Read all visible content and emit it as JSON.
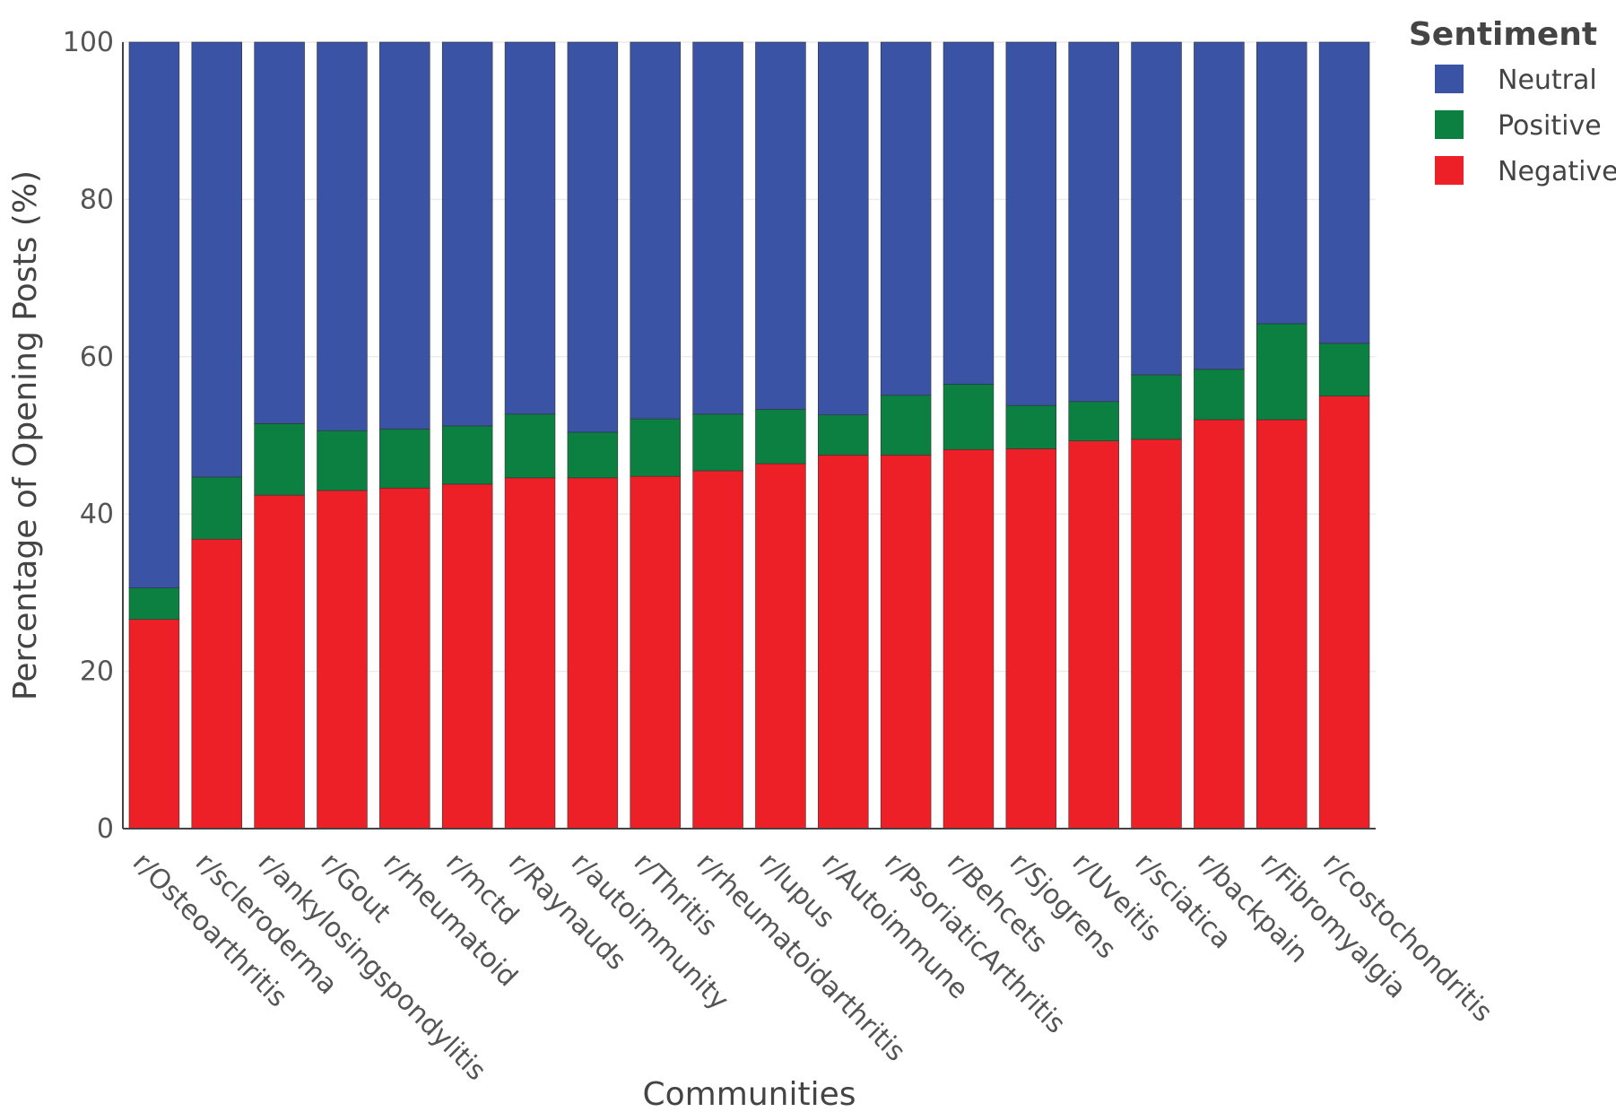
{
  "chart_data": {
    "type": "bar",
    "stacked": true,
    "xlabel": "Communities",
    "ylabel": "Percentage of Opening Posts (%)",
    "ylim": [
      0,
      100
    ],
    "yticks": [
      0,
      20,
      40,
      60,
      80,
      100
    ],
    "grid": true,
    "categories": [
      "r/Osteoarthritis",
      "r/scleroderma",
      "r/ankylosingspondylitis",
      "r/Gout",
      "r/rheumatoid",
      "r/mctd",
      "r/Raynauds",
      "r/autoimmunity",
      "r/Thritis",
      "r/rheumatoidarthritis",
      "r/lupus",
      "r/Autoimmune",
      "r/PsoriaticArthritis",
      "r/Behcets",
      "r/Sjogrens",
      "r/Uveitis",
      "r/sciatica",
      "r/backpain",
      "r/Fibromyalgia",
      "r/costochondritis"
    ],
    "series": [
      {
        "name": "Negative",
        "color": "#ee2027",
        "values": [
          26.6,
          36.8,
          42.4,
          43.0,
          43.3,
          43.8,
          44.6,
          44.6,
          44.8,
          45.5,
          46.4,
          47.5,
          47.5,
          48.2,
          48.3,
          49.3,
          49.5,
          52.0,
          52.0,
          55.0
        ]
      },
      {
        "name": "Positive",
        "color": "#0b8040",
        "values": [
          4.0,
          7.9,
          9.1,
          7.6,
          7.5,
          7.4,
          8.1,
          5.8,
          7.3,
          7.2,
          6.9,
          5.1,
          7.6,
          8.3,
          5.5,
          5.0,
          8.2,
          6.4,
          12.2,
          6.7
        ]
      },
      {
        "name": "Neutral",
        "color": "#3a53a4",
        "values": [
          69.4,
          55.3,
          48.5,
          49.4,
          49.2,
          48.8,
          47.3,
          49.6,
          47.9,
          47.3,
          46.7,
          47.4,
          44.9,
          43.5,
          46.2,
          45.7,
          42.3,
          41.6,
          35.8,
          38.3
        ]
      }
    ],
    "legend": {
      "title": "Sentiment",
      "position": "top-right",
      "order": [
        "Neutral",
        "Positive",
        "Negative"
      ]
    }
  }
}
